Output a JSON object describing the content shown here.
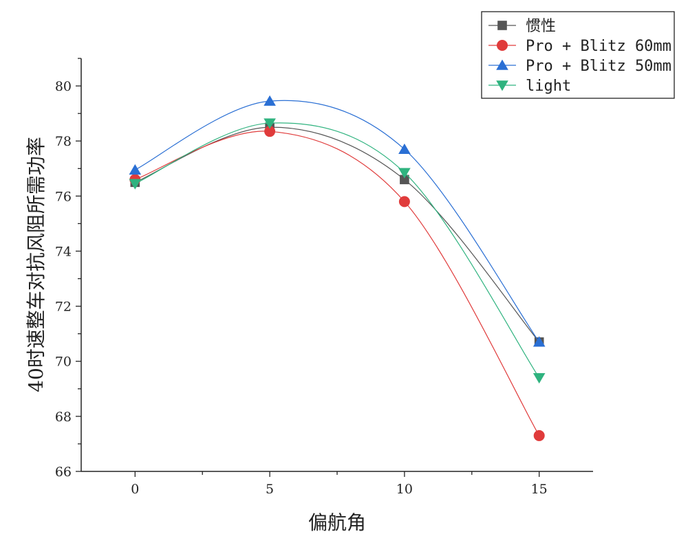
{
  "chart_data": {
    "type": "line",
    "xlabel": "偏航角",
    "ylabel": "40时速整车对抗风阻所需功率",
    "xlim": [
      -2,
      17
    ],
    "ylim": [
      66,
      81
    ],
    "x_ticks": [
      0,
      5,
      10,
      15
    ],
    "y_ticks": [
      66,
      68,
      70,
      72,
      74,
      76,
      78,
      80
    ],
    "x": [
      0,
      5,
      10,
      15
    ],
    "grid": false,
    "legend_position": "top-right",
    "series": [
      {
        "name": "惯性",
        "values": [
          76.5,
          78.5,
          76.6,
          70.7
        ],
        "color": "#555555",
        "marker": "square"
      },
      {
        "name": "Pro + Blitz 60mm",
        "values": [
          76.6,
          78.35,
          75.8,
          67.3
        ],
        "color": "#e03b3b",
        "marker": "circle"
      },
      {
        "name": "Pro + Blitz 50mm",
        "values": [
          76.95,
          79.45,
          77.7,
          70.7
        ],
        "color": "#2a6fd4",
        "marker": "triangle-up"
      },
      {
        "name": "light",
        "values": [
          76.45,
          78.65,
          76.85,
          69.4
        ],
        "color": "#2fb37f",
        "marker": "triangle-down"
      }
    ]
  }
}
